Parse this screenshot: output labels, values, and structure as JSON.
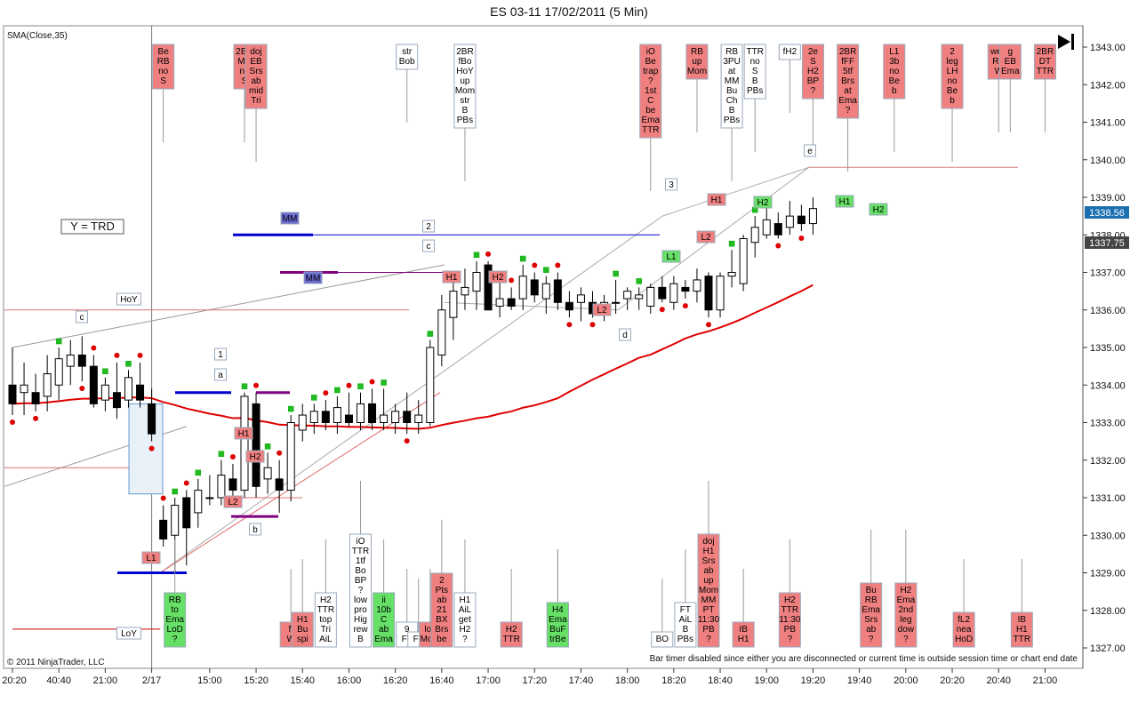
{
  "window": {
    "title": "ES 03-11  17/02/2011 (5 Min)",
    "indicator_label": "SMA(Close,35)",
    "copyright": "© 2011 NinjaTrader, LLC",
    "status_message": "Bar timer disabled since either you are disconnected or current time is outside session time or chart end date",
    "y_trd_label": "Y = TRD",
    "last_close_tag": "1337.75",
    "sma_tag": "1338.56"
  },
  "colors": {
    "up_candle": "#ffffff",
    "down_candle": "#000000",
    "sma_line": "#e00000",
    "note_red": "#f08080",
    "note_green": "#66e066",
    "note_white": "#ffffff",
    "level_blue": "#0000cc",
    "level_purple": "#800080"
  },
  "chart_data": {
    "type": "candlestick",
    "title": "ES 03-11  17/02/2011 (5 Min)",
    "ylim": [
      1326.8,
      1343.3
    ],
    "y_ticks": [
      1327.0,
      1328.0,
      1329.0,
      1330.0,
      1331.0,
      1332.0,
      1333.0,
      1334.0,
      1335.0,
      1336.0,
      1337.0,
      1338.0,
      1339.0,
      1340.0,
      1341.0,
      1342.0,
      1343.0
    ],
    "x_tick_labels": [
      {
        "label": "20:20",
        "bar": 0
      },
      {
        "label": "40:40",
        "bar": 4
      },
      {
        "label": "21:00",
        "bar": 8
      },
      {
        "label": "2/17",
        "bar": 12
      },
      {
        "label": "15:00",
        "bar": 17
      },
      {
        "label": "15:20",
        "bar": 21
      },
      {
        "label": "15:40",
        "bar": 25
      },
      {
        "label": "16:00",
        "bar": 29
      },
      {
        "label": "16:20",
        "bar": 33
      },
      {
        "label": "16:40",
        "bar": 37
      },
      {
        "label": "17:00",
        "bar": 41
      },
      {
        "label": "17:20",
        "bar": 45
      },
      {
        "label": "17:40",
        "bar": 49
      },
      {
        "label": "18:00",
        "bar": 53
      },
      {
        "label": "18:20",
        "bar": 57
      },
      {
        "label": "18:40",
        "bar": 61
      },
      {
        "label": "19:00",
        "bar": 65
      },
      {
        "label": "19:20",
        "bar": 69
      },
      {
        "label": "19:40",
        "bar": 73
      },
      {
        "label": "20:00",
        "bar": 77
      },
      {
        "label": "20:20",
        "bar": 81
      },
      {
        "label": "20:40",
        "bar": 85
      },
      {
        "label": "21:00",
        "bar": 89
      }
    ],
    "candles": [
      {
        "o": 1334.0,
        "h": 1335.0,
        "l": 1333.2,
        "c": 1333.5
      },
      {
        "o": 1333.8,
        "h": 1334.6,
        "l": 1333.2,
        "c": 1334.0
      },
      {
        "o": 1333.8,
        "h": 1334.3,
        "l": 1333.3,
        "c": 1333.5
      },
      {
        "o": 1333.7,
        "h": 1334.8,
        "l": 1333.3,
        "c": 1334.3
      },
      {
        "o": 1334.0,
        "h": 1335.0,
        "l": 1333.6,
        "c": 1334.7
      },
      {
        "o": 1334.5,
        "h": 1335.2,
        "l": 1334.0,
        "c": 1334.8
      },
      {
        "o": 1334.8,
        "h": 1335.3,
        "l": 1334.1,
        "c": 1334.5
      },
      {
        "o": 1334.5,
        "h": 1334.8,
        "l": 1333.4,
        "c": 1333.5
      },
      {
        "o": 1333.6,
        "h": 1334.2,
        "l": 1333.3,
        "c": 1334.0
      },
      {
        "o": 1333.8,
        "h": 1334.6,
        "l": 1333.1,
        "c": 1333.4
      },
      {
        "o": 1333.6,
        "h": 1334.4,
        "l": 1333.4,
        "c": 1334.2
      },
      {
        "o": 1334.0,
        "h": 1334.6,
        "l": 1333.4,
        "c": 1333.6
      },
      {
        "o": 1333.5,
        "h": 1333.9,
        "l": 1332.5,
        "c": 1332.7
      },
      {
        "o": 1330.4,
        "h": 1330.8,
        "l": 1329.7,
        "c": 1329.9
      },
      {
        "o": 1330.0,
        "h": 1331.0,
        "l": 1329.0,
        "c": 1330.8
      },
      {
        "o": 1331.0,
        "h": 1331.2,
        "l": 1329.2,
        "c": 1330.2
      },
      {
        "o": 1330.6,
        "h": 1331.5,
        "l": 1330.2,
        "c": 1331.2
      },
      {
        "o": 1331.0,
        "h": 1331.6,
        "l": 1330.8,
        "c": 1331.0
      },
      {
        "o": 1331.0,
        "h": 1332.0,
        "l": 1330.8,
        "c": 1331.6
      },
      {
        "o": 1331.5,
        "h": 1331.9,
        "l": 1331.0,
        "c": 1331.2
      },
      {
        "o": 1331.2,
        "h": 1333.8,
        "l": 1331.0,
        "c": 1333.7
      },
      {
        "o": 1333.5,
        "h": 1333.8,
        "l": 1331.0,
        "c": 1331.3
      },
      {
        "o": 1331.5,
        "h": 1332.2,
        "l": 1331.1,
        "c": 1331.8
      },
      {
        "o": 1331.5,
        "h": 1332.0,
        "l": 1330.6,
        "c": 1331.2
      },
      {
        "o": 1331.2,
        "h": 1333.2,
        "l": 1330.9,
        "c": 1333.0
      },
      {
        "o": 1332.8,
        "h": 1333.5,
        "l": 1332.5,
        "c": 1333.2
      },
      {
        "o": 1333.0,
        "h": 1333.5,
        "l": 1332.7,
        "c": 1333.3
      },
      {
        "o": 1333.3,
        "h": 1333.6,
        "l": 1332.8,
        "c": 1333.0
      },
      {
        "o": 1333.0,
        "h": 1333.7,
        "l": 1332.7,
        "c": 1333.4
      },
      {
        "o": 1333.2,
        "h": 1333.8,
        "l": 1332.9,
        "c": 1333.0
      },
      {
        "o": 1333.0,
        "h": 1333.8,
        "l": 1332.8,
        "c": 1333.5
      },
      {
        "o": 1333.5,
        "h": 1333.9,
        "l": 1332.8,
        "c": 1333.0
      },
      {
        "o": 1333.0,
        "h": 1333.9,
        "l": 1332.8,
        "c": 1333.2
      },
      {
        "o": 1333.0,
        "h": 1333.5,
        "l": 1332.7,
        "c": 1333.3
      },
      {
        "o": 1333.3,
        "h": 1333.8,
        "l": 1332.7,
        "c": 1333.0
      },
      {
        "o": 1333.0,
        "h": 1333.6,
        "l": 1332.7,
        "c": 1333.2
      },
      {
        "o": 1333.0,
        "h": 1335.2,
        "l": 1332.9,
        "c": 1335.0
      },
      {
        "o": 1334.8,
        "h": 1336.4,
        "l": 1334.5,
        "c": 1336.0
      },
      {
        "o": 1335.8,
        "h": 1336.8,
        "l": 1335.2,
        "c": 1336.5
      },
      {
        "o": 1336.4,
        "h": 1337.1,
        "l": 1336.0,
        "c": 1336.6
      },
      {
        "o": 1336.5,
        "h": 1337.3,
        "l": 1336.0,
        "c": 1337.0
      },
      {
        "o": 1337.2,
        "h": 1337.3,
        "l": 1336.0,
        "c": 1336.0
      },
      {
        "o": 1336.1,
        "h": 1336.8,
        "l": 1335.8,
        "c": 1336.3
      },
      {
        "o": 1336.3,
        "h": 1336.6,
        "l": 1336.0,
        "c": 1336.1
      },
      {
        "o": 1336.3,
        "h": 1337.2,
        "l": 1336.0,
        "c": 1336.9
      },
      {
        "o": 1336.8,
        "h": 1337.0,
        "l": 1336.2,
        "c": 1336.4
      },
      {
        "o": 1336.3,
        "h": 1336.9,
        "l": 1335.9,
        "c": 1336.7
      },
      {
        "o": 1336.8,
        "h": 1337.0,
        "l": 1336.0,
        "c": 1336.2
      },
      {
        "o": 1336.2,
        "h": 1336.5,
        "l": 1335.8,
        "c": 1336.0
      },
      {
        "o": 1336.2,
        "h": 1336.6,
        "l": 1335.7,
        "c": 1336.4
      },
      {
        "o": 1336.2,
        "h": 1336.5,
        "l": 1335.8,
        "c": 1335.9
      },
      {
        "o": 1336.0,
        "h": 1336.4,
        "l": 1335.7,
        "c": 1336.2
      },
      {
        "o": 1336.2,
        "h": 1336.8,
        "l": 1335.9,
        "c": 1336.2
      },
      {
        "o": 1336.3,
        "h": 1336.6,
        "l": 1336.0,
        "c": 1336.5
      },
      {
        "o": 1336.3,
        "h": 1336.6,
        "l": 1336.0,
        "c": 1336.4
      },
      {
        "o": 1336.1,
        "h": 1336.7,
        "l": 1335.9,
        "c": 1336.6
      },
      {
        "o": 1336.6,
        "h": 1336.9,
        "l": 1336.2,
        "c": 1336.3
      },
      {
        "o": 1336.2,
        "h": 1336.9,
        "l": 1336.0,
        "c": 1336.7
      },
      {
        "o": 1336.6,
        "h": 1336.8,
        "l": 1336.3,
        "c": 1336.5
      },
      {
        "o": 1336.5,
        "h": 1337.1,
        "l": 1336.2,
        "c": 1336.8
      },
      {
        "o": 1336.9,
        "h": 1337.0,
        "l": 1335.8,
        "c": 1336.0
      },
      {
        "o": 1336.0,
        "h": 1337.0,
        "l": 1335.8,
        "c": 1336.9
      },
      {
        "o": 1336.9,
        "h": 1337.6,
        "l": 1336.6,
        "c": 1337.0
      },
      {
        "o": 1336.7,
        "h": 1338.0,
        "l": 1336.5,
        "c": 1337.9
      },
      {
        "o": 1337.8,
        "h": 1338.5,
        "l": 1337.4,
        "c": 1338.2
      },
      {
        "o": 1338.0,
        "h": 1338.8,
        "l": 1337.9,
        "c": 1338.4
      },
      {
        "o": 1338.3,
        "h": 1338.6,
        "l": 1337.9,
        "c": 1338.0
      },
      {
        "o": 1338.2,
        "h": 1338.9,
        "l": 1338.0,
        "c": 1338.5
      },
      {
        "o": 1338.5,
        "h": 1338.8,
        "l": 1338.1,
        "c": 1338.3
      },
      {
        "o": 1338.3,
        "h": 1339.0,
        "l": 1338.0,
        "c": 1338.7
      }
    ],
    "annotations": {
      "top_notes": [
        {
          "text": "Be RB no S",
          "color": "red",
          "bar": 13
        },
        {
          "text": "2BR MC no S",
          "color": "red",
          "bar": 20
        },
        {
          "text": "doj EB Srs ab mid Tri",
          "color": "red",
          "bar": 21
        },
        {
          "text": "str Bob",
          "color": "white",
          "bar": 34
        },
        {
          "text": "2BR fBo HoY up Mom str B PBs",
          "color": "white",
          "bar": 39
        },
        {
          "text": "iO Be trap ? 1st C be Ema TTR",
          "color": "red",
          "bar": 55
        },
        {
          "text": "RB up Mom",
          "color": "red",
          "bar": 59
        },
        {
          "text": "RB 3PU at MM Bu Ch B PBs",
          "color": "white",
          "bar": 62
        },
        {
          "text": "TTR no S B PBs",
          "color": "white",
          "bar": 64
        },
        {
          "text": "fH2",
          "color": "white",
          "bar": 67
        },
        {
          "text": "2e S H2 BP ?",
          "color": "red",
          "bar": 69
        },
        {
          "text": "2BR fFF 5tf Brs at Ema ?",
          "color": "red",
          "bar": 72
        },
        {
          "text": "L1 3b no Be b",
          "color": "red",
          "bar": 76
        },
        {
          "text": "2 leg LH no Be b",
          "color": "red",
          "bar": 81
        },
        {
          "text": "wea RB W",
          "color": "red",
          "bar": 85
        },
        {
          "text": "g EB Ema",
          "color": "red",
          "bar": 86
        },
        {
          "text": "2BR DT TTR",
          "color": "red",
          "bar": 89
        }
      ],
      "bottom_notes": [
        {
          "text": "RB to Ema LoD ?",
          "color": "green",
          "bar": 14
        },
        {
          "text": "ff W",
          "color": "red",
          "bar": 24
        },
        {
          "text": "H1 Bu spi",
          "color": "red",
          "bar": 25
        },
        {
          "text": "H2 TTR top Tri AiL",
          "color": "white",
          "bar": 27
        },
        {
          "text": "iO TTR 1tf Bo BP ? low pro Hig rew B",
          "color": "white",
          "bar": 30
        },
        {
          "text": "ii 10b C ab Ema",
          "color": "green",
          "bar": 32
        },
        {
          "text": "9 FT",
          "color": "white",
          "bar": 34
        },
        {
          "text": "FT",
          "color": "white",
          "bar": 35
        },
        {
          "text": "los Mom",
          "color": "red",
          "bar": 36
        },
        {
          "text": "2 Pts ab 21 BX Brs be",
          "color": "red",
          "bar": 37
        },
        {
          "text": "H1 AiL get H2 ?",
          "color": "white",
          "bar": 39
        },
        {
          "text": "H2 TTR",
          "color": "red",
          "bar": 43
        },
        {
          "text": "ii fBo AiL TTR",
          "color": "white",
          "bar": 47
        },
        {
          "text": "H4 Ema BuF trBe",
          "color": "green",
          "bar": 47
        },
        {
          "text": "BO",
          "color": "white",
          "bar": 56
        },
        {
          "text": "FT AiL B PBs",
          "color": "white",
          "bar": 58
        },
        {
          "text": "doj H1 Srs ab up Mom MM PT 11:30 PB ?",
          "color": "red",
          "bar": 60
        },
        {
          "text": "IB H1",
          "color": "red",
          "bar": 63
        },
        {
          "text": "H2 TTR 11:30 PB ?",
          "color": "red",
          "bar": 67
        },
        {
          "text": "Bu RB Ema Srs ab ?",
          "color": "red",
          "bar": 74
        },
        {
          "text": "H2 Ema 2nd leg dow ?",
          "color": "red",
          "bar": 77
        },
        {
          "text": "fL2 nea HoD",
          "color": "red",
          "bar": 82
        },
        {
          "text": "IB H1 TTR",
          "color": "red",
          "bar": 87
        }
      ],
      "labels": [
        {
          "text": "HoY"
        },
        {
          "text": "c"
        },
        {
          "text": "1"
        },
        {
          "text": "a"
        },
        {
          "text": "L1"
        },
        {
          "text": "LoY"
        },
        {
          "text": "H1"
        },
        {
          "text": "H2"
        },
        {
          "text": "L2"
        },
        {
          "text": "b"
        },
        {
          "text": "MM"
        },
        {
          "text": "MM"
        },
        {
          "text": "2"
        },
        {
          "text": "c"
        },
        {
          "text": "H1"
        },
        {
          "text": "H2"
        },
        {
          "text": "L2"
        },
        {
          "text": "d"
        },
        {
          "text": "3"
        },
        {
          "text": "H1"
        },
        {
          "text": "L2"
        },
        {
          "text": "L1"
        },
        {
          "text": "H2"
        },
        {
          "text": "e"
        },
        {
          "text": "H1"
        },
        {
          "text": "H2"
        }
      ]
    }
  }
}
